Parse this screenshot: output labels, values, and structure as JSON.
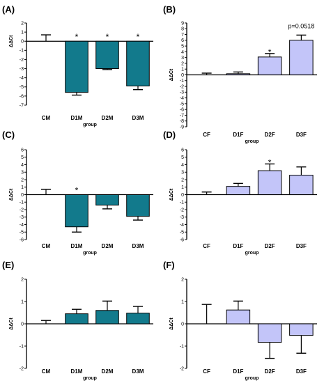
{
  "colors": {
    "male_bar": "#127a8c",
    "female_bar": "#c3c5f9",
    "axis": "#000000"
  },
  "chart_data": [
    {
      "panel": "(A)",
      "type": "bar",
      "categories": [
        "CM",
        "D1M",
        "D2M",
        "D3M"
      ],
      "values": [
        0.0,
        -5.6,
        -3.0,
        -4.9
      ],
      "errors": [
        0.7,
        0.3,
        0.1,
        0.4
      ],
      "annotations": [
        "",
        "*",
        "*",
        "*"
      ],
      "extra_annotation": "",
      "ylim": [
        -7,
        2
      ],
      "yticks": [
        "2",
        "1",
        "0",
        "-1",
        "-2",
        "-3",
        "-4",
        "-5",
        "-6",
        "-7"
      ],
      "ylabel": "ΔΔCt",
      "xlabel": "group",
      "bar_color": "#127a8c"
    },
    {
      "panel": "(B)",
      "type": "bar",
      "categories": [
        "CF",
        "D1F",
        "D2F",
        "D3F"
      ],
      "values": [
        0.0,
        0.2,
        3.1,
        6.0
      ],
      "errors": [
        0.3,
        0.3,
        0.6,
        0.9
      ],
      "annotations": [
        "",
        "",
        "*",
        ""
      ],
      "extra_annotation": "p=0.0518",
      "ylim": [
        -9,
        9
      ],
      "yticks": [
        "9",
        "8",
        "7",
        "6",
        "5",
        "4",
        "3",
        "2",
        "1",
        "0",
        "-1",
        "-2",
        "-3",
        "-4",
        "-5",
        "-6",
        "-7",
        "-8",
        "-9"
      ],
      "ylabel": "ΔΔCt",
      "xlabel": "group",
      "bar_color": "#c3c5f9"
    },
    {
      "panel": "(C)",
      "type": "bar",
      "categories": [
        "CM",
        "D1M",
        "D2M",
        "D3M"
      ],
      "values": [
        0.0,
        -4.3,
        -1.4,
        -2.9
      ],
      "errors": [
        0.7,
        0.7,
        0.5,
        0.5
      ],
      "annotations": [
        "",
        "*",
        "",
        ""
      ],
      "extra_annotation": "",
      "ylim": [
        -6,
        6
      ],
      "yticks": [
        "6",
        "5",
        "4",
        "3",
        "2",
        "1",
        "0",
        "-1",
        "-2",
        "-3",
        "-4",
        "-5",
        "-6"
      ],
      "ylabel": "ΔΔCt",
      "xlabel": "group",
      "bar_color": "#127a8c"
    },
    {
      "panel": "(D)",
      "type": "bar",
      "categories": [
        "CF",
        "D1F",
        "D2F",
        "D3F"
      ],
      "values": [
        0.0,
        1.1,
        3.2,
        2.6
      ],
      "errors": [
        0.35,
        0.4,
        0.9,
        1.1
      ],
      "annotations": [
        "",
        "",
        "*",
        ""
      ],
      "extra_annotation": "",
      "ylim": [
        -6,
        6
      ],
      "yticks": [
        "6",
        "5",
        "4",
        "3",
        "2",
        "1",
        "0",
        "-1",
        "-2",
        "-3",
        "-4",
        "-5",
        "-6"
      ],
      "ylabel": "ΔΔCt",
      "xlabel": "group",
      "bar_color": "#c3c5f9"
    },
    {
      "panel": "(E)",
      "type": "bar",
      "categories": [
        "CM",
        "D1M",
        "D2M",
        "D3M"
      ],
      "values": [
        0.0,
        0.45,
        0.6,
        0.48
      ],
      "errors": [
        0.15,
        0.2,
        0.42,
        0.3
      ],
      "annotations": [
        "",
        "",
        "",
        ""
      ],
      "extra_annotation": "",
      "ylim": [
        -2,
        2
      ],
      "yticks": [
        "2",
        "1",
        "0",
        "-1",
        "-2"
      ],
      "ylabel": "ΔΔCt",
      "xlabel": "group",
      "bar_color": "#127a8c"
    },
    {
      "panel": "(F)",
      "type": "bar",
      "categories": [
        "CF",
        "D1F",
        "D2F",
        "D3F"
      ],
      "values": [
        0.0,
        0.62,
        -0.83,
        -0.52
      ],
      "errors": [
        0.87,
        0.4,
        0.72,
        0.8
      ],
      "annotations": [
        "",
        "",
        "",
        ""
      ],
      "extra_annotation": "",
      "ylim": [
        -2,
        2
      ],
      "yticks": [
        "2",
        "1",
        "0",
        "-1",
        "-2"
      ],
      "ylabel": "ΔΔCt",
      "xlabel": "group",
      "bar_color": "#c3c5f9"
    }
  ]
}
